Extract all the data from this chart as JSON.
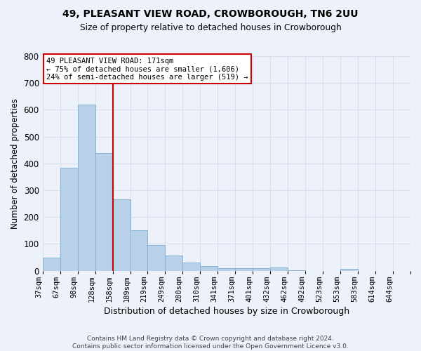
{
  "title1": "49, PLEASANT VIEW ROAD, CROWBOROUGH, TN6 2UU",
  "title2": "Size of property relative to detached houses in Crowborough",
  "xlabel": "Distribution of detached houses by size in Crowborough",
  "ylabel": "Number of detached properties",
  "categories": [
    "37sqm",
    "67sqm",
    "98sqm",
    "128sqm",
    "158sqm",
    "189sqm",
    "219sqm",
    "249sqm",
    "280sqm",
    "310sqm",
    "341sqm",
    "371sqm",
    "401sqm",
    "432sqm",
    "462sqm",
    "492sqm",
    "523sqm",
    "553sqm",
    "583sqm",
    "614sqm",
    "644sqm"
  ],
  "values": [
    50,
    385,
    620,
    440,
    265,
    152,
    97,
    57,
    30,
    17,
    10,
    10,
    10,
    12,
    2,
    0,
    0,
    7,
    0,
    0,
    0
  ],
  "bar_color": "#b8d0e8",
  "bar_edge_color": "#7aafd4",
  "background_color": "#edf1f9",
  "grid_color": "#d8dff0",
  "vline_color": "#cc0000",
  "vline_x_index": 4,
  "annotation_line1": "49 PLEASANT VIEW ROAD: 171sqm",
  "annotation_line2": "← 75% of detached houses are smaller (1,606)",
  "annotation_line3": "24% of semi-detached houses are larger (519) →",
  "annotation_box_bg": "#ffffff",
  "annotation_box_edge": "#cc0000",
  "footnote1": "Contains HM Land Registry data © Crown copyright and database right 2024.",
  "footnote2": "Contains public sector information licensed under the Open Government Licence v3.0.",
  "ylim": [
    0,
    800
  ],
  "yticks": [
    0,
    100,
    200,
    300,
    400,
    500,
    600,
    700,
    800
  ]
}
